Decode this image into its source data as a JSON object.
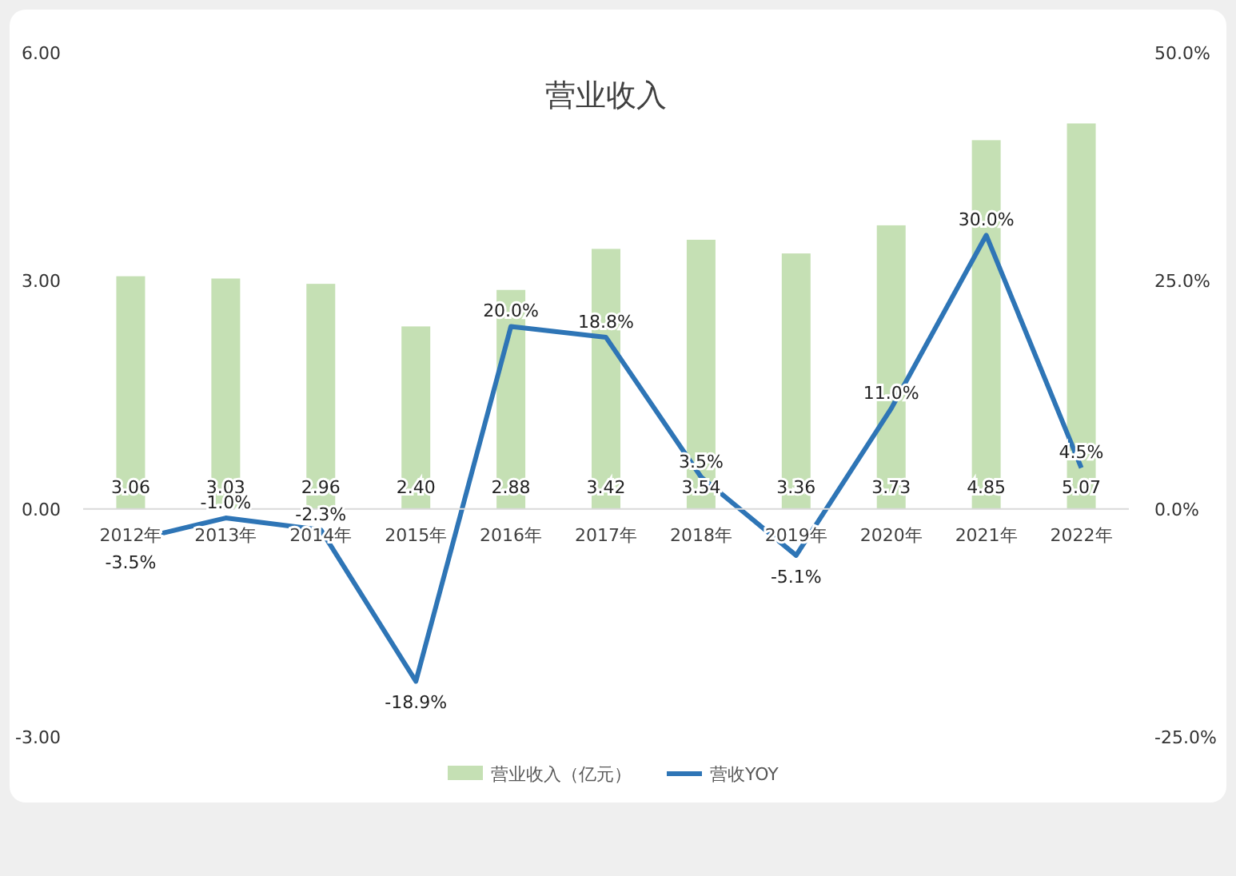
{
  "chart_data": {
    "type": "bar",
    "title": "营业收入",
    "categories": [
      "2012年",
      "2013年",
      "2014年",
      "2015年",
      "2016年",
      "2017年",
      "2018年",
      "2019年",
      "2020年",
      "2021年",
      "2022年"
    ],
    "series": [
      {
        "name": "营业收入（亿元）",
        "color": "#c5e0b4",
        "values": [
          3.06,
          3.03,
          2.96,
          2.4,
          2.88,
          3.42,
          3.54,
          3.36,
          3.73,
          4.85,
          5.07
        ],
        "value_labels": [
          "3.06",
          "3.03",
          "2.96",
          "2.40",
          "2.88",
          "3.42",
          "3.54",
          "3.36",
          "3.73",
          "4.85",
          "5.07"
        ]
      },
      {
        "name": "营收YOY",
        "type": "line",
        "axis": "y2",
        "color": "#2e75b6",
        "values": [
          -3.5,
          -1.0,
          -2.3,
          -18.9,
          20.0,
          18.8,
          3.5,
          -5.1,
          11.0,
          30.0,
          4.5
        ],
        "value_labels": [
          "-3.5%",
          "-1.0%",
          "-2.3%",
          "-18.9%",
          "20.0%",
          "18.8%",
          "3.5%",
          "-5.1%",
          "11.0%",
          "30.0%",
          "4.5%"
        ]
      }
    ],
    "ylim": [
      -3,
      6
    ],
    "yticks": [
      {
        "value": -3,
        "label": "-3.00"
      },
      {
        "value": 0,
        "label": "0.00"
      },
      {
        "value": 3,
        "label": "3.00"
      },
      {
        "value": 6,
        "label": "6.00"
      }
    ],
    "y2lim": [
      -25,
      50
    ],
    "y2ticks": [
      {
        "value": -25,
        "label": "-25.0%"
      },
      {
        "value": 0,
        "label": "0.0%"
      },
      {
        "value": 25,
        "label": "25.0%"
      },
      {
        "value": 50,
        "label": "50.0%"
      }
    ],
    "legend": "bottom",
    "grid": false,
    "marker": "none",
    "line_style": "solid"
  }
}
